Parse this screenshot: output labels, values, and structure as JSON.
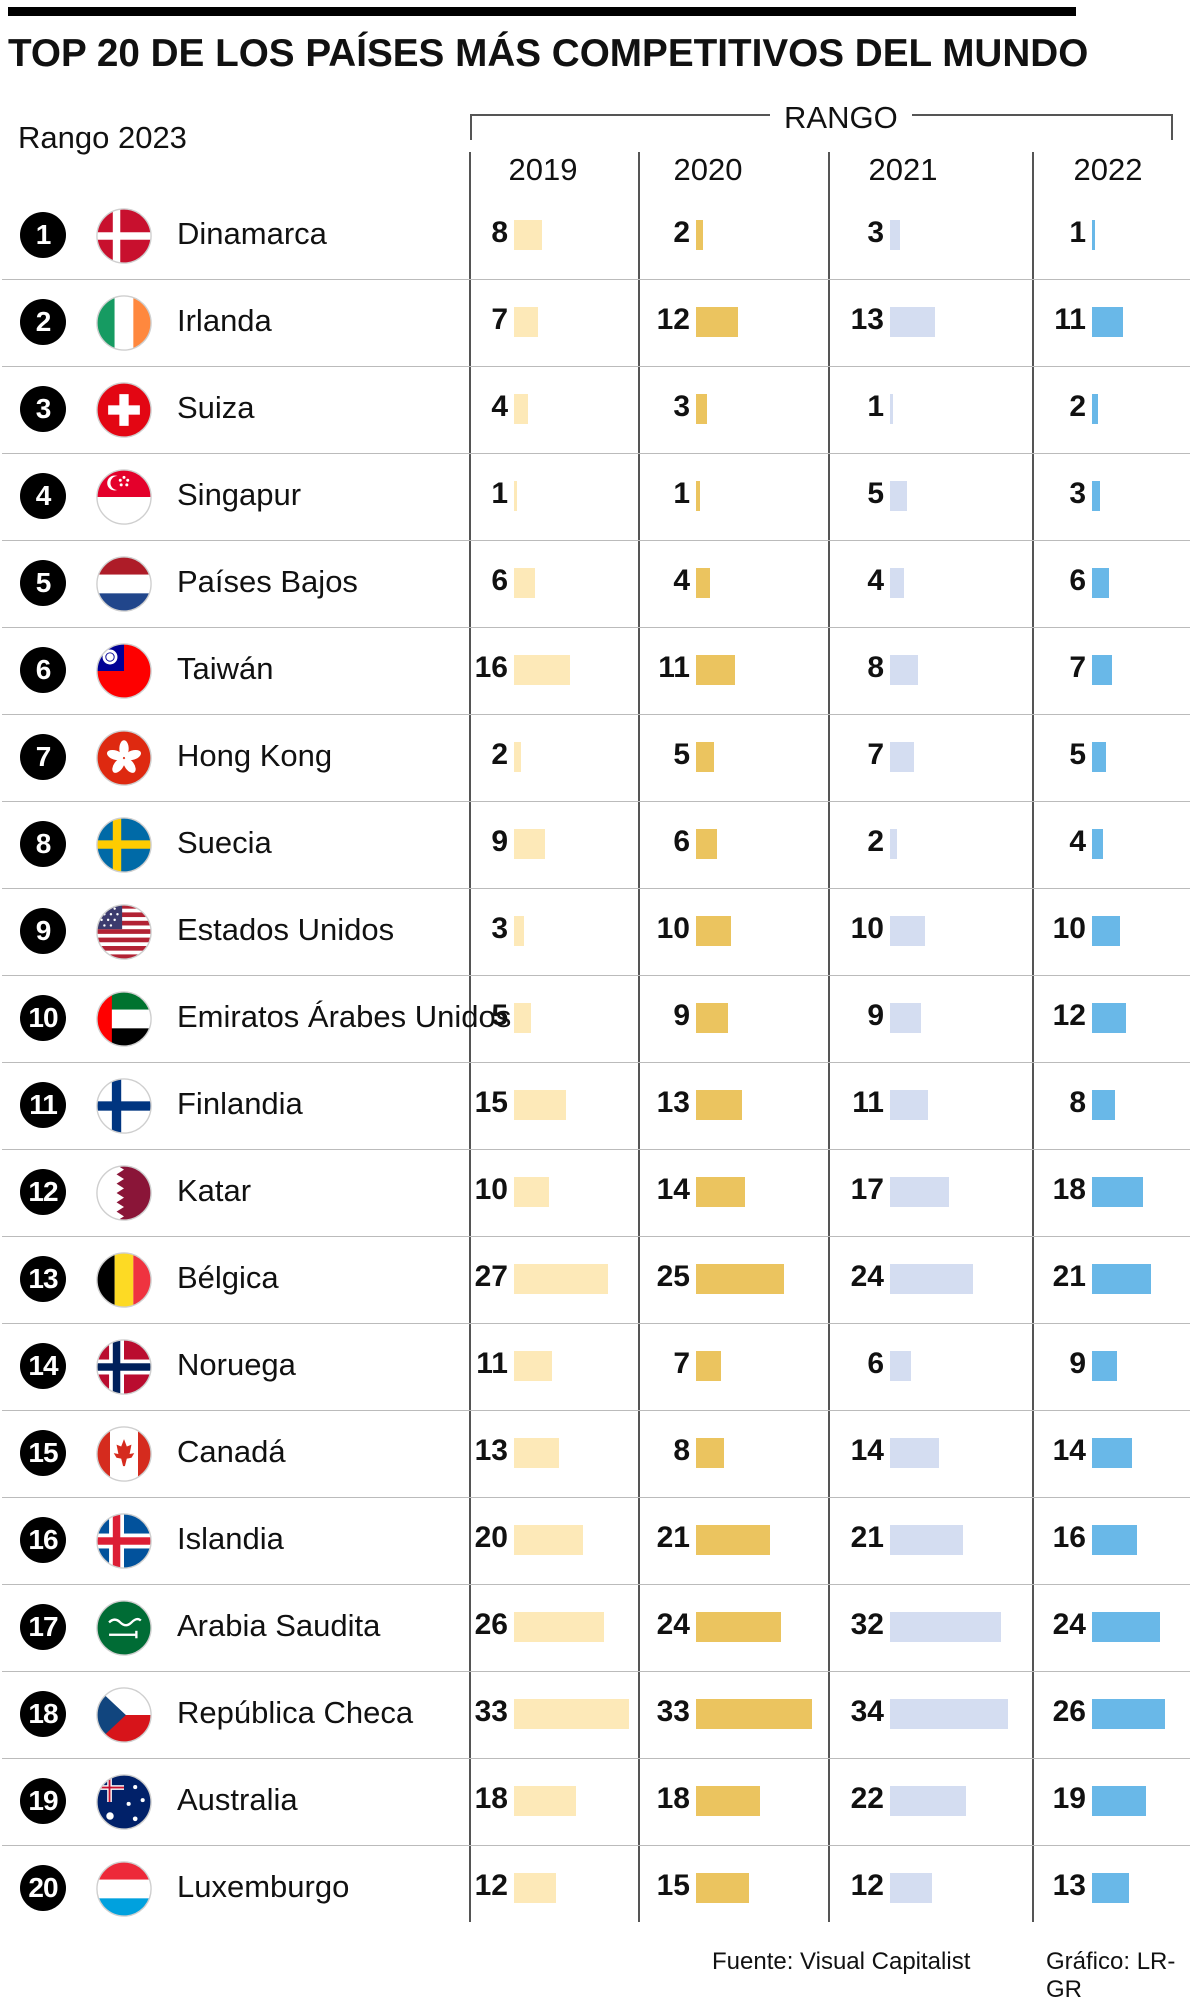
{
  "title": "TOP 20 DE LOS PAÍSES MÁS COMPETITIVOS DEL MUNDO",
  "rank_header": "Rango 2023",
  "group_header": "RANGO",
  "source": "Fuente: Visual Capitalist",
  "credit": "Gráfico: LR-GR",
  "colors": {
    "2019": "#fde9b8",
    "2020": "#ebc45f",
    "2021": "#d4ddf1",
    "2022": "#69b8e8",
    "rank_circle": "#000000"
  },
  "chart_data": {
    "type": "table",
    "title": "TOP 20 DE LOS PAÍSES MÁS COMPETITIVOS DEL MUNDO",
    "columns": [
      "Rango 2023",
      "2019",
      "2020",
      "2021",
      "2022"
    ],
    "years": [
      "2019",
      "2020",
      "2021",
      "2022"
    ],
    "value_max": 34,
    "rows": [
      {
        "rank": "1",
        "country": "Dinamarca",
        "flag": "denmark-flag-icon",
        "values": [
          8,
          2,
          3,
          1
        ]
      },
      {
        "rank": "2",
        "country": "Irlanda",
        "flag": "ireland-flag-icon",
        "values": [
          7,
          12,
          13,
          11
        ]
      },
      {
        "rank": "3",
        "country": "Suiza",
        "flag": "switzerland-flag-icon",
        "values": [
          4,
          3,
          1,
          2
        ]
      },
      {
        "rank": "4",
        "country": "Singapur",
        "flag": "singapore-flag-icon",
        "values": [
          1,
          1,
          5,
          3
        ]
      },
      {
        "rank": "5",
        "country": "Países Bajos",
        "flag": "netherlands-flag-icon",
        "values": [
          6,
          4,
          4,
          6
        ]
      },
      {
        "rank": "6",
        "country": "Taiwán",
        "flag": "taiwan-flag-icon",
        "values": [
          16,
          11,
          8,
          7
        ]
      },
      {
        "rank": "7",
        "country": "Hong Kong",
        "flag": "hong-kong-flag-icon",
        "values": [
          2,
          5,
          7,
          5
        ]
      },
      {
        "rank": "8",
        "country": "Suecia",
        "flag": "sweden-flag-icon",
        "values": [
          9,
          6,
          2,
          4
        ]
      },
      {
        "rank": "9",
        "country": "Estados Unidos",
        "flag": "usa-flag-icon",
        "values": [
          3,
          10,
          10,
          10
        ]
      },
      {
        "rank": "10",
        "country": "Emiratos Árabes Unidos",
        "flag": "uae-flag-icon",
        "values": [
          5,
          9,
          9,
          12
        ]
      },
      {
        "rank": "11",
        "country": "Finlandia",
        "flag": "finland-flag-icon",
        "values": [
          15,
          13,
          11,
          8
        ]
      },
      {
        "rank": "12",
        "country": "Katar",
        "flag": "qatar-flag-icon",
        "values": [
          10,
          14,
          17,
          18
        ]
      },
      {
        "rank": "13",
        "country": "Bélgica",
        "flag": "belgium-flag-icon",
        "values": [
          27,
          25,
          24,
          21
        ]
      },
      {
        "rank": "14",
        "country": "Noruega",
        "flag": "norway-flag-icon",
        "values": [
          11,
          7,
          6,
          9
        ]
      },
      {
        "rank": "15",
        "country": "Canadá",
        "flag": "canada-flag-icon",
        "values": [
          13,
          8,
          14,
          14
        ]
      },
      {
        "rank": "16",
        "country": "Islandia",
        "flag": "iceland-flag-icon",
        "values": [
          20,
          21,
          21,
          16
        ]
      },
      {
        "rank": "17",
        "country": "Arabia Saudita",
        "flag": "saudi-arabia-flag-icon",
        "values": [
          26,
          24,
          32,
          24
        ]
      },
      {
        "rank": "18",
        "country": "República Checa",
        "flag": "czech-republic-flag-icon",
        "values": [
          33,
          33,
          34,
          26
        ]
      },
      {
        "rank": "19",
        "country": "Australia",
        "flag": "australia-flag-icon",
        "values": [
          18,
          18,
          22,
          19
        ]
      },
      {
        "rank": "20",
        "country": "Luxemburgo",
        "flag": "luxembourg-flag-icon",
        "values": [
          12,
          15,
          12,
          13
        ]
      }
    ]
  }
}
